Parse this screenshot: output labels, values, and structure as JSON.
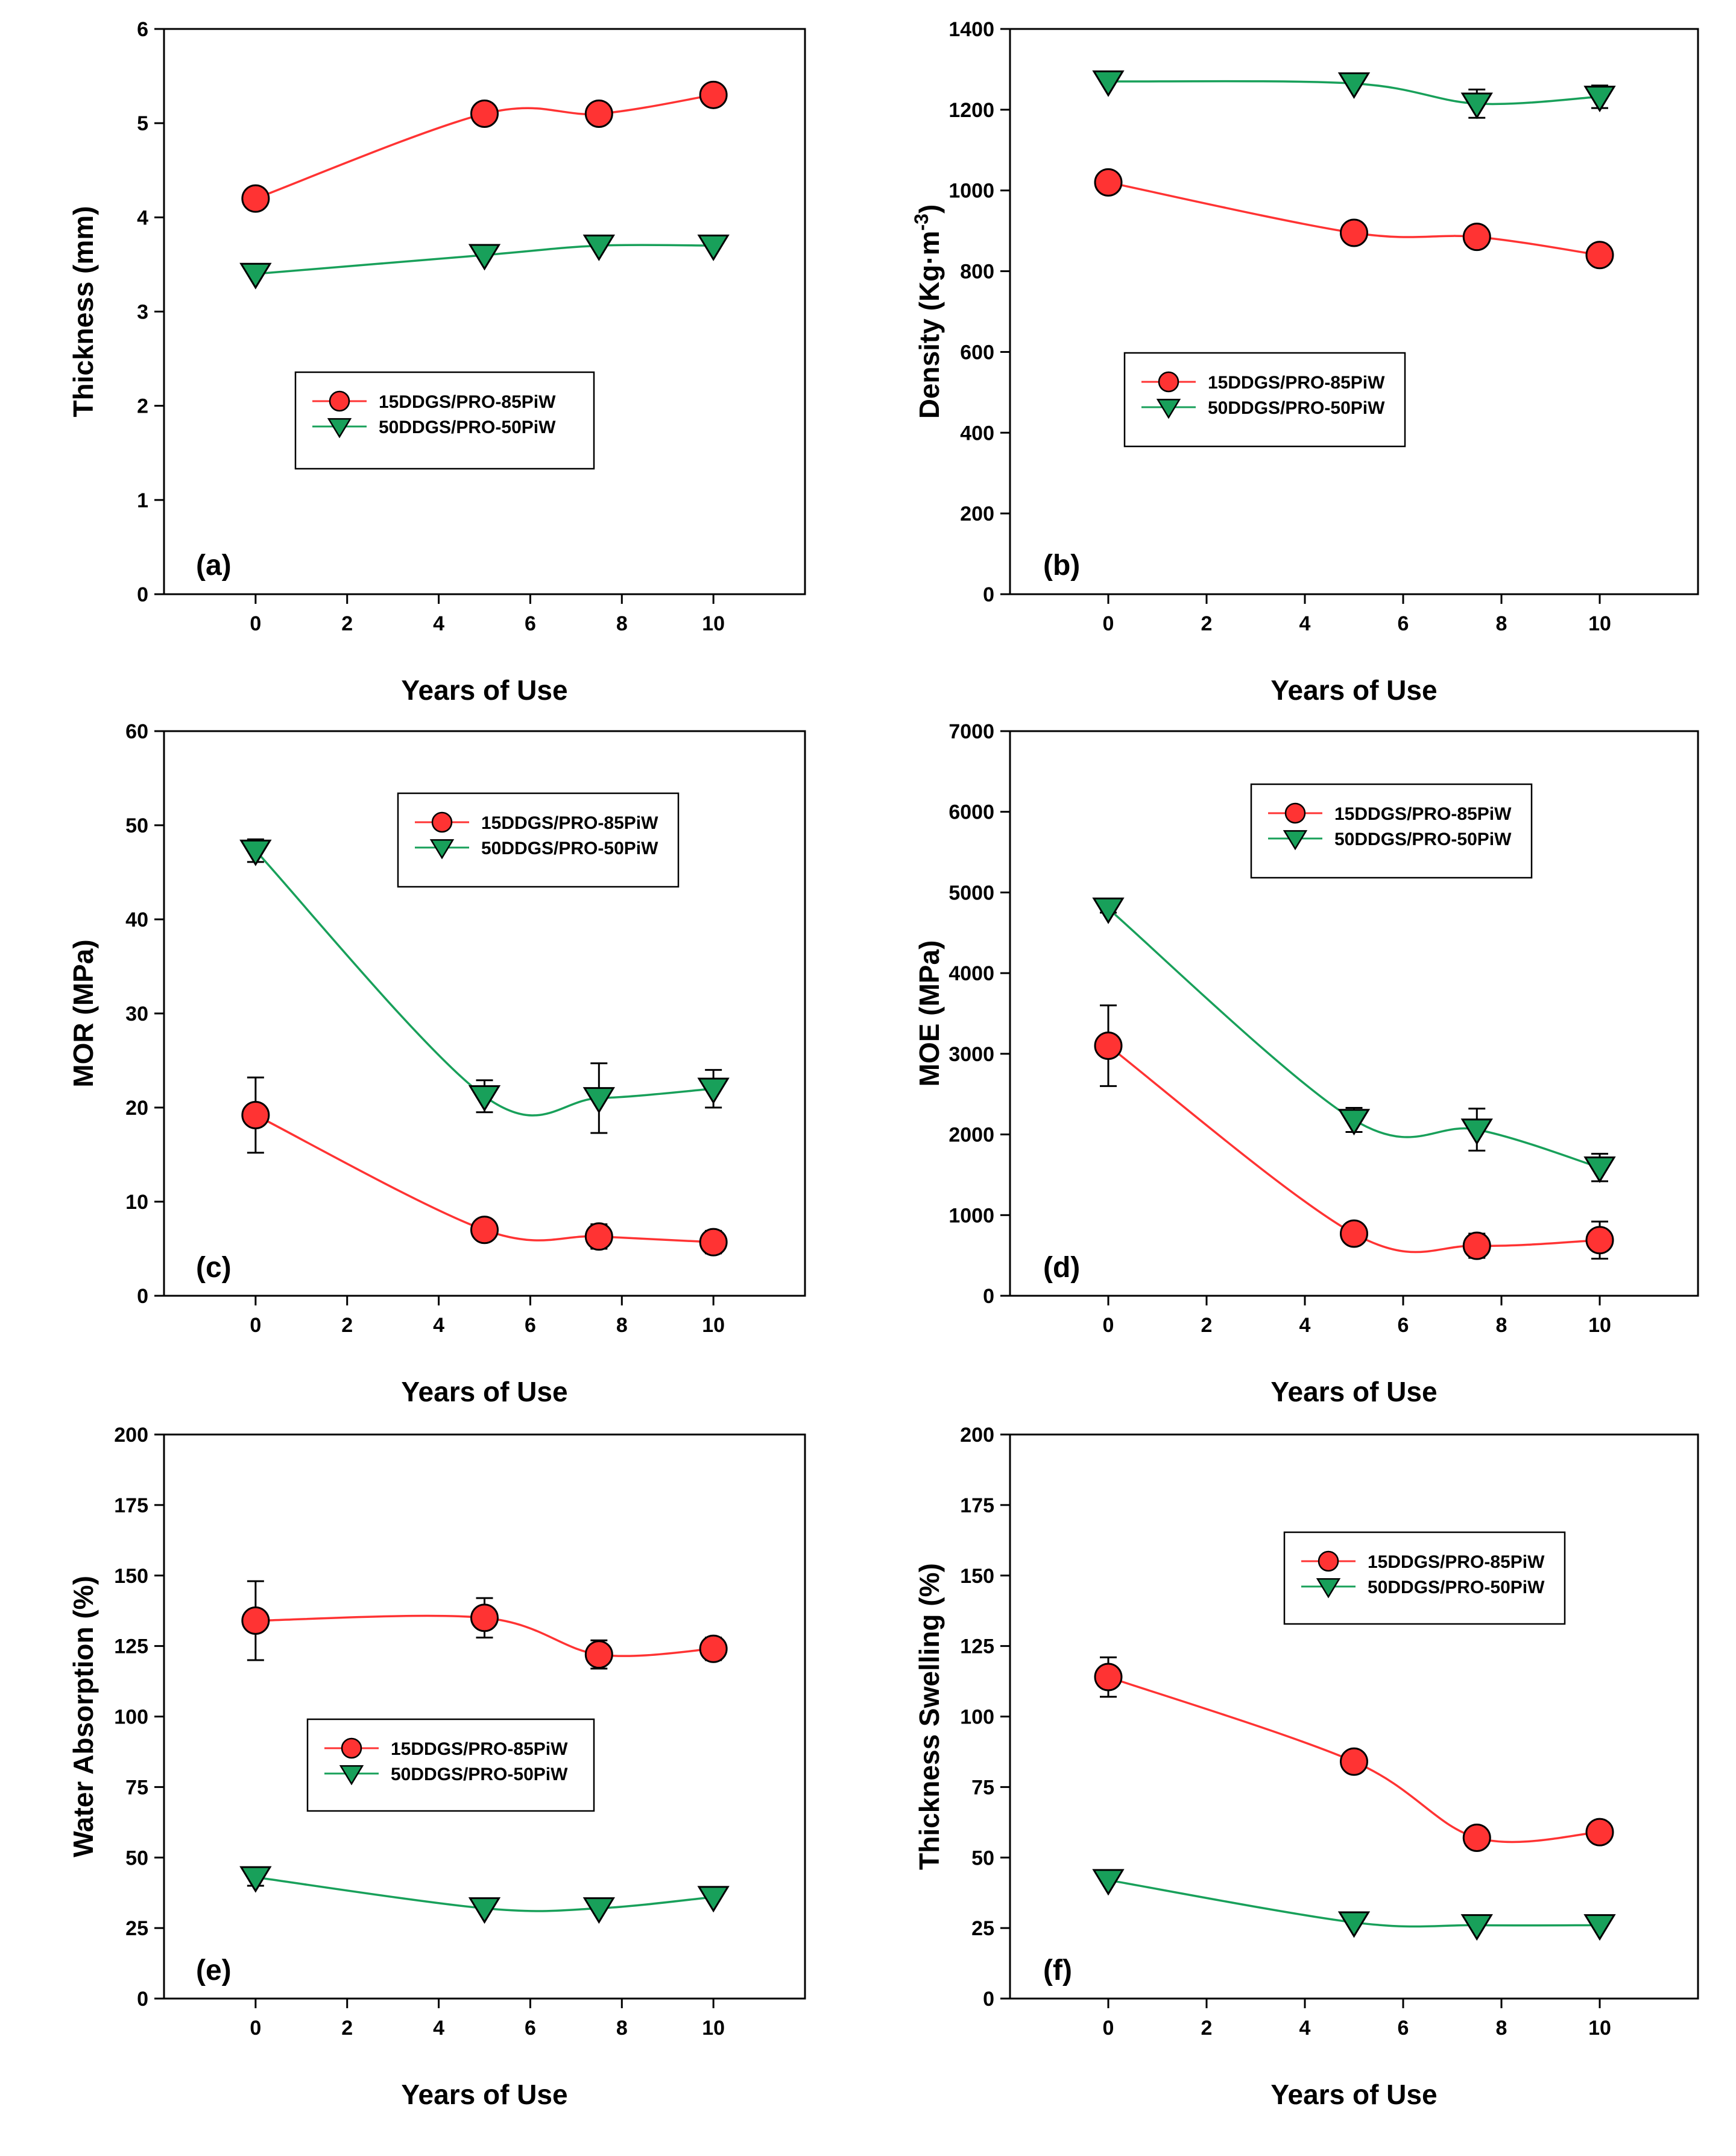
{
  "figure": {
    "colors": {
      "red_series": "#ff3333",
      "red_line": "#ff3333",
      "green_series": "#18a05a",
      "green_line": "#18a05a",
      "axis": "#000000"
    }
  },
  "chart_data": [
    {
      "type": "line",
      "panel_label": "(a)",
      "title": "",
      "xlabel": "Years of Use",
      "ylabel": "Thickness (mm)",
      "xlim": [
        -2,
        12
      ],
      "ylim": [
        0,
        6
      ],
      "xticks": [
        0,
        2,
        4,
        6,
        8,
        10
      ],
      "yticks": [
        0,
        1,
        2,
        3,
        4,
        5,
        6
      ],
      "legend_position": "middle-left",
      "series": [
        {
          "name": "15DDGS/PRO-85PiW",
          "marker": "circle",
          "x": [
            0,
            5,
            7.5,
            10
          ],
          "y": [
            4.2,
            5.1,
            5.1,
            5.3
          ],
          "err": [
            0,
            0,
            0,
            0.1
          ]
        },
        {
          "name": "50DDGS/PRO-50PiW",
          "marker": "triangle-down",
          "x": [
            0,
            5,
            7.5,
            10
          ],
          "y": [
            3.4,
            3.6,
            3.7,
            3.7
          ],
          "err": [
            0,
            0,
            0,
            0
          ]
        }
      ]
    },
    {
      "type": "line",
      "panel_label": "(b)",
      "title": "",
      "xlabel": "Years of Use",
      "ylabel": "Density (Kg·m-3)",
      "ylabel_main": "Density (Kg·m",
      "ylabel_sup": "-3",
      "ylabel_close": ")",
      "xlim": [
        -2,
        12
      ],
      "ylim": [
        0,
        1400
      ],
      "xticks": [
        0,
        2,
        4,
        6,
        8,
        10
      ],
      "yticks": [
        0,
        200,
        400,
        600,
        800,
        1000,
        1200,
        1400
      ],
      "legend_position": "middle-left",
      "series": [
        {
          "name": "15DDGS/PRO-85PiW",
          "marker": "circle",
          "x": [
            0,
            5,
            7.5,
            10
          ],
          "y": [
            1020,
            895,
            885,
            840
          ],
          "err": [
            0,
            0,
            0,
            0
          ]
        },
        {
          "name": "50DDGS/PRO-50PiW",
          "marker": "triangle-down",
          "x": [
            0,
            5,
            7.5,
            10
          ],
          "y": [
            1270,
            1265,
            1215,
            1232
          ],
          "err": [
            0,
            0,
            35,
            28
          ]
        }
      ]
    },
    {
      "type": "line",
      "panel_label": "(c)",
      "title": "",
      "xlabel": "Years of Use",
      "ylabel": "MOR (MPa)",
      "xlim": [
        -2,
        12
      ],
      "ylim": [
        0,
        60
      ],
      "xticks": [
        0,
        2,
        4,
        6,
        8,
        10
      ],
      "yticks": [
        0,
        10,
        20,
        30,
        40,
        50,
        60
      ],
      "legend_position": "top-right",
      "series": [
        {
          "name": "15DDGS/PRO-85PiW",
          "marker": "circle",
          "x": [
            0,
            5,
            7.5,
            10
          ],
          "y": [
            19.2,
            7,
            6.3,
            5.7
          ],
          "err": [
            4,
            0.6,
            1.3,
            1.2
          ]
        },
        {
          "name": "50DDGS/PRO-50PiW",
          "marker": "triangle-down",
          "x": [
            0,
            5,
            7.5,
            10
          ],
          "y": [
            47.3,
            21.2,
            21,
            22
          ],
          "err": [
            1.2,
            1.7,
            3.7,
            2
          ]
        }
      ]
    },
    {
      "type": "line",
      "panel_label": "(d)",
      "title": "",
      "xlabel": "Years of Use",
      "ylabel": "MOE (MPa)",
      "xlim": [
        -2,
        12
      ],
      "ylim": [
        0,
        7000
      ],
      "xticks": [
        0,
        2,
        4,
        6,
        8,
        10
      ],
      "yticks": [
        0,
        1000,
        2000,
        3000,
        4000,
        5000,
        6000,
        7000
      ],
      "legend_position": "top-right",
      "series": [
        {
          "name": "15DDGS/PRO-85PiW",
          "marker": "circle",
          "x": [
            0,
            5,
            7.5,
            10
          ],
          "y": [
            3100,
            770,
            620,
            690
          ],
          "err": [
            500,
            60,
            150,
            230
          ]
        },
        {
          "name": "50DDGS/PRO-50PiW",
          "marker": "triangle-down",
          "x": [
            0,
            5,
            7.5,
            10
          ],
          "y": [
            4800,
            2180,
            2060,
            1590
          ],
          "err": [
            50,
            150,
            260,
            170
          ]
        }
      ]
    },
    {
      "type": "line",
      "panel_label": "(e)",
      "title": "",
      "xlabel": "Years of Use",
      "ylabel": "Water Absorption (%)",
      "xlim": [
        -2,
        12
      ],
      "ylim": [
        0,
        200
      ],
      "xticks": [
        0,
        2,
        4,
        6,
        8,
        10
      ],
      "yticks": [
        0,
        25,
        50,
        75,
        100,
        125,
        150,
        175,
        200
      ],
      "legend_position": "middle-left",
      "series": [
        {
          "name": "15DDGS/PRO-85PiW",
          "marker": "circle",
          "x": [
            0,
            5,
            7.5,
            10
          ],
          "y": [
            134,
            135,
            122,
            124
          ],
          "err": [
            14,
            7,
            5,
            4
          ]
        },
        {
          "name": "50DDGS/PRO-50PiW",
          "marker": "triangle-down",
          "x": [
            0,
            5,
            7.5,
            10
          ],
          "y": [
            43,
            32,
            32,
            36
          ],
          "err": [
            3,
            0,
            0,
            0
          ]
        }
      ]
    },
    {
      "type": "line",
      "panel_label": "(f)",
      "title": "",
      "xlabel": "Years of Use",
      "ylabel": "Thickness Swelling (%)",
      "xlim": [
        -2,
        12
      ],
      "ylim": [
        0,
        200
      ],
      "xticks": [
        0,
        2,
        4,
        6,
        8,
        10
      ],
      "yticks": [
        0,
        25,
        50,
        75,
        100,
        125,
        150,
        175,
        200
      ],
      "legend_position": "top-right",
      "series": [
        {
          "name": "15DDGS/PRO-85PiW",
          "marker": "circle",
          "x": [
            0,
            5,
            7.5,
            10
          ],
          "y": [
            114,
            84,
            57,
            59
          ],
          "err": [
            7,
            0,
            0,
            0
          ]
        },
        {
          "name": "50DDGS/PRO-50PiW",
          "marker": "triangle-down",
          "x": [
            0,
            5,
            7.5,
            10
          ],
          "y": [
            42,
            27,
            26,
            26
          ],
          "err": [
            0,
            0,
            0,
            0
          ]
        }
      ]
    }
  ]
}
